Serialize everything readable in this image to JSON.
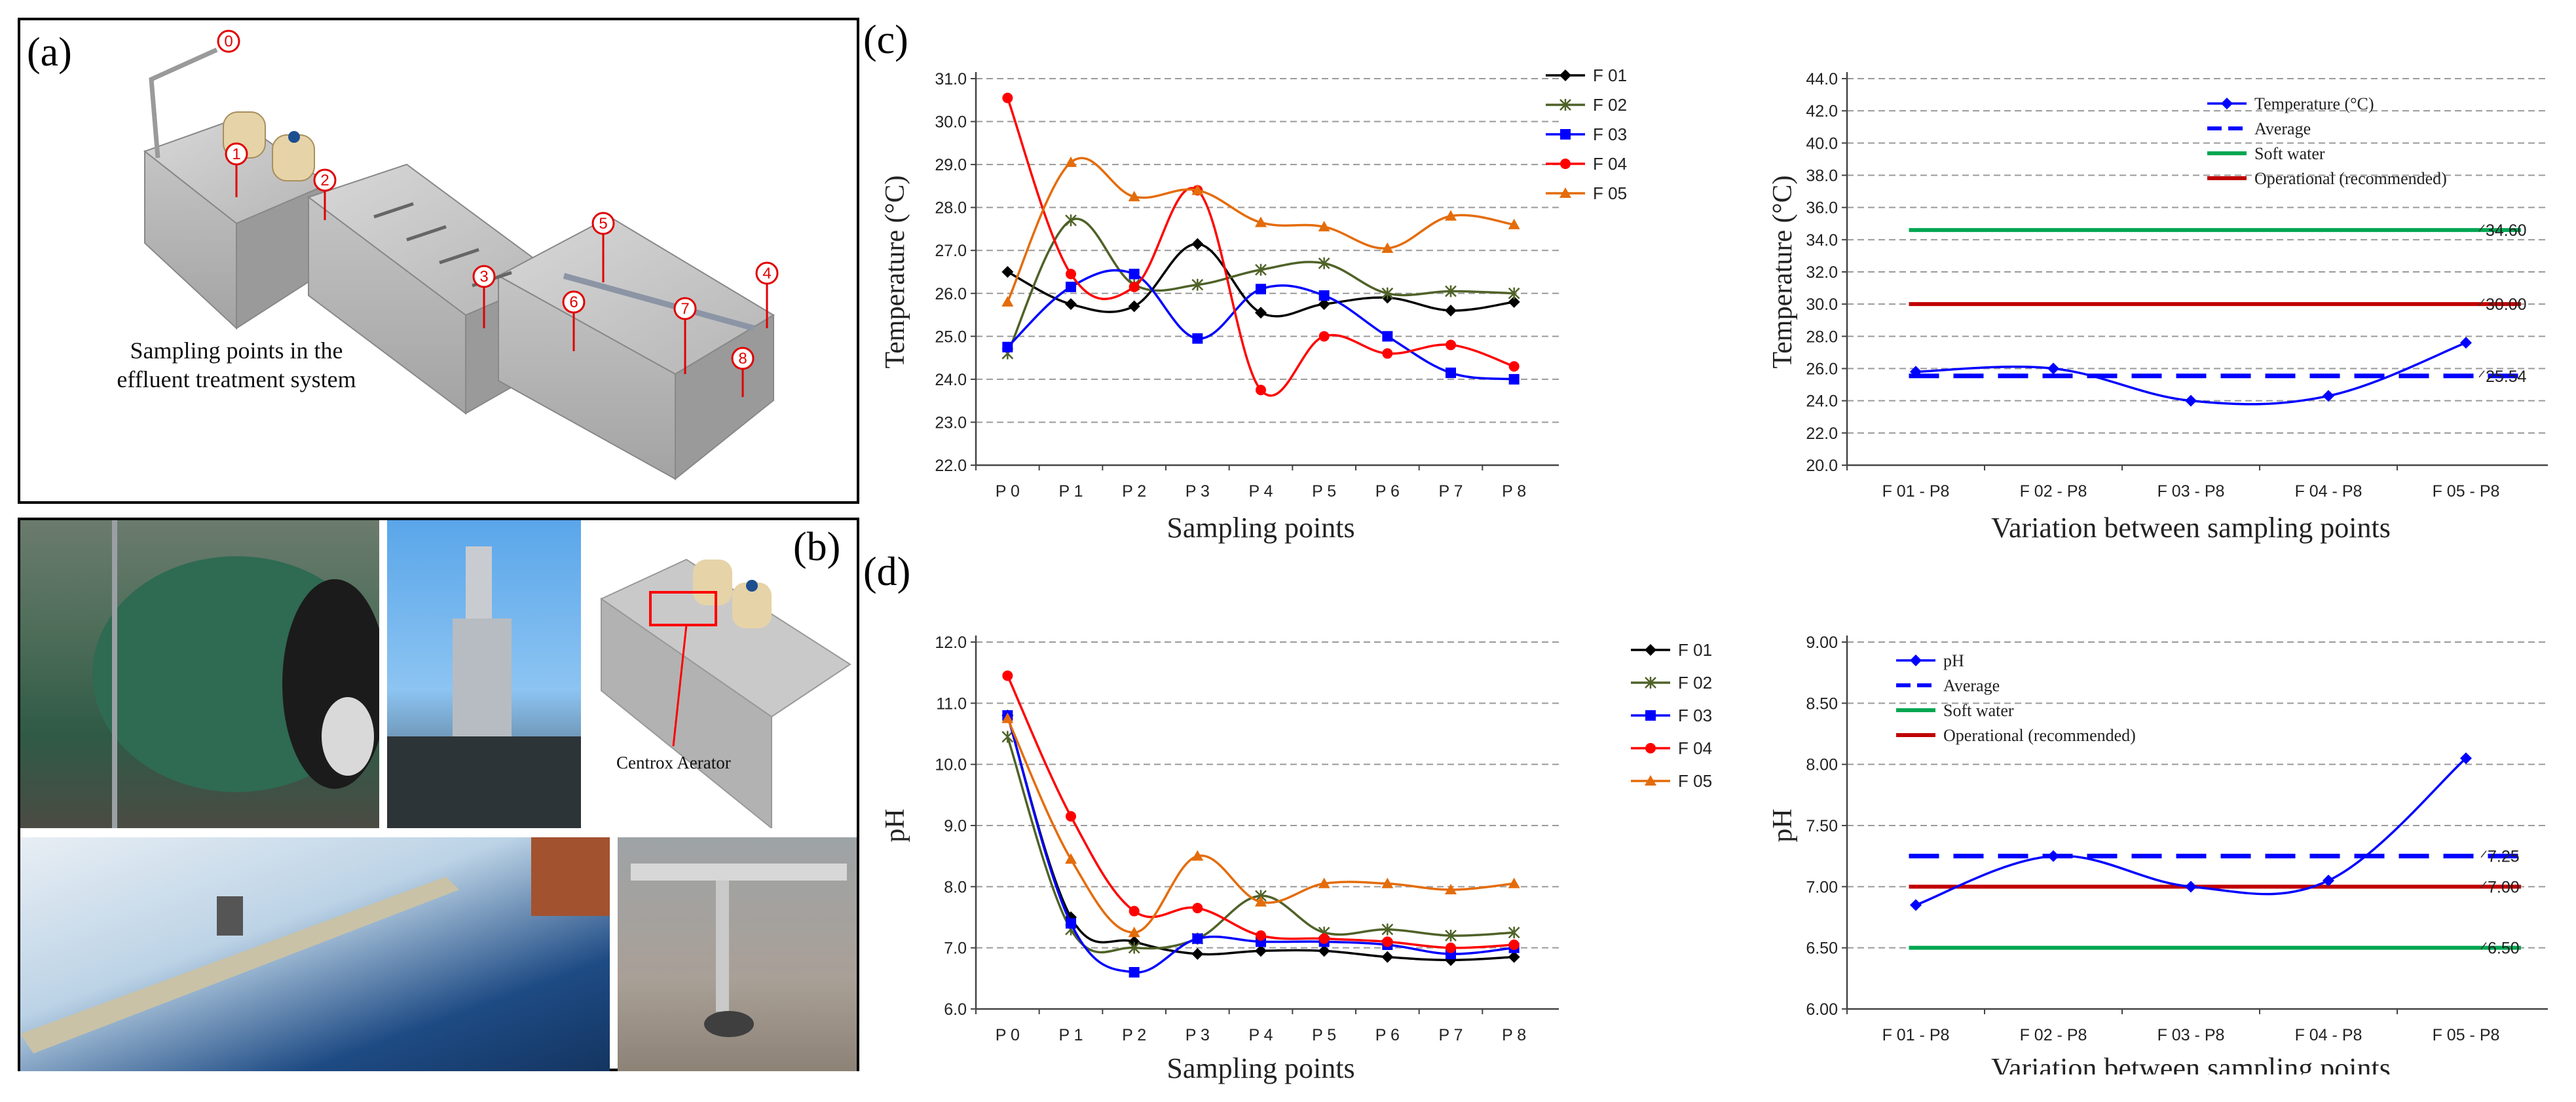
{
  "panels": {
    "a": {
      "letter": "(a)",
      "caption_line1": "Sampling points in the",
      "caption_line2": "effluent treatment system",
      "markers": [
        "0",
        "1",
        "2",
        "3",
        "4",
        "5",
        "6",
        "7",
        "8"
      ]
    },
    "b": {
      "letter": "(b)",
      "callout": "Centrox Aerator"
    },
    "c": {
      "letter": "(c)"
    },
    "d": {
      "letter": "(d)"
    }
  },
  "colors": {
    "F 01": "#000000",
    "F 02": "#4f6228",
    "F 03": "#0000ff",
    "F 04": "#ff0000",
    "F 05": "#e46c0a",
    "avg": "#0000ff",
    "soft": "#00a651",
    "oper": "#c00000",
    "marker_red": "#e00000"
  },
  "chart_data": [
    {
      "id": "temp-lines",
      "type": "line",
      "xlabel": "Sampling points",
      "ylabel": "Temperature (°C)",
      "ylim": [
        22.0,
        31.0
      ],
      "ystep": 1.0,
      "ytick_decimals": 1,
      "grid": true,
      "legend": "top-right",
      "categories": [
        "P 0",
        "P 1",
        "P 2",
        "P 3",
        "P 4",
        "P 5",
        "P 6",
        "P 7",
        "P 8"
      ],
      "series": [
        {
          "name": "F 01",
          "marker": "diamond",
          "values": [
            26.5,
            25.75,
            25.7,
            27.15,
            25.55,
            25.75,
            25.9,
            25.6,
            25.8
          ]
        },
        {
          "name": "F 02",
          "marker": "x",
          "values": [
            24.6,
            27.7,
            26.2,
            26.2,
            26.55,
            26.7,
            26.0,
            26.05,
            26.0
          ]
        },
        {
          "name": "F 03",
          "marker": "square",
          "values": [
            24.75,
            26.15,
            26.45,
            24.95,
            26.1,
            25.95,
            25.0,
            24.15,
            24.0
          ]
        },
        {
          "name": "F 04",
          "marker": "circle",
          "values": [
            30.55,
            26.45,
            26.15,
            28.4,
            23.75,
            25.0,
            24.6,
            24.8,
            24.3
          ]
        },
        {
          "name": "F 05",
          "marker": "triangle",
          "values": [
            25.8,
            29.05,
            28.25,
            28.4,
            27.65,
            27.55,
            27.05,
            27.8,
            27.6
          ]
        }
      ]
    },
    {
      "id": "temp-variation",
      "type": "line",
      "xlabel": "Variation between sampling points",
      "ylabel": "Temperature (°C)",
      "ylim": [
        20.0,
        44.0
      ],
      "ystep": 2.0,
      "ytick_decimals": 1,
      "grid": true,
      "legend": "top-right",
      "categories": [
        "F 01 - P8",
        "F 02 - P8",
        "F 03 - P8",
        "F 04 - P8",
        "F 05 - P8"
      ],
      "series": [
        {
          "name": "Temperature (°C)",
          "marker": "diamond",
          "values": [
            25.8,
            26.0,
            24.0,
            24.3,
            27.6
          ]
        }
      ],
      "reference_lines": [
        {
          "name": "Average",
          "value": 25.54,
          "label": "25.54",
          "style": "dash",
          "color_key": "avg"
        },
        {
          "name": "Soft water",
          "value": 34.6,
          "label": "34.60",
          "style": "solid",
          "color_key": "soft"
        },
        {
          "name": "Operational (recommended)",
          "value": 30.0,
          "label": "30.00",
          "style": "solid",
          "color_key": "oper"
        }
      ]
    },
    {
      "id": "ph-lines",
      "type": "line",
      "xlabel": "Sampling points",
      "ylabel": "pH",
      "ylim": [
        6.0,
        12.0
      ],
      "ystep": 1.0,
      "ytick_decimals": 1,
      "grid": true,
      "legend": "top-right",
      "categories": [
        "P 0",
        "P 1",
        "P 2",
        "P 3",
        "P 4",
        "P 5",
        "P 6",
        "P 7",
        "P 8"
      ],
      "series": [
        {
          "name": "F 01",
          "marker": "diamond",
          "values": [
            10.8,
            7.5,
            7.1,
            6.9,
            6.95,
            6.95,
            6.85,
            6.8,
            6.85
          ]
        },
        {
          "name": "F 02",
          "marker": "x",
          "values": [
            10.45,
            7.3,
            7.0,
            7.15,
            7.85,
            7.25,
            7.3,
            7.2,
            7.25
          ]
        },
        {
          "name": "F 03",
          "marker": "square",
          "values": [
            10.8,
            7.4,
            6.6,
            7.15,
            7.1,
            7.1,
            7.05,
            6.9,
            7.0
          ]
        },
        {
          "name": "F 04",
          "marker": "circle",
          "values": [
            11.45,
            9.15,
            7.6,
            7.65,
            7.2,
            7.15,
            7.1,
            7.0,
            7.05
          ]
        },
        {
          "name": "F 05",
          "marker": "triangle",
          "values": [
            10.75,
            8.45,
            7.25,
            8.5,
            7.75,
            8.05,
            8.05,
            7.95,
            8.05
          ]
        }
      ]
    },
    {
      "id": "ph-variation",
      "type": "line",
      "xlabel": "Variation between sampling points",
      "ylabel": "pH",
      "ylim": [
        6.0,
        9.0
      ],
      "ystep": 0.5,
      "ytick_decimals": 2,
      "grid": true,
      "legend": "top-left",
      "categories": [
        "F 01 - P8",
        "F 02 - P8",
        "F 03 - P8",
        "F 04 - P8",
        "F 05 - P8"
      ],
      "series": [
        {
          "name": "pH",
          "marker": "diamond",
          "values": [
            6.85,
            7.25,
            7.0,
            7.05,
            8.05
          ]
        }
      ],
      "reference_lines": [
        {
          "name": "Average",
          "value": 7.25,
          "label": "7.25",
          "style": "dash",
          "color_key": "avg"
        },
        {
          "name": "Soft water",
          "value": 6.5,
          "label": "6.50",
          "style": "solid",
          "color_key": "soft"
        },
        {
          "name": "Operational (recommended)",
          "value": 7.0,
          "label": "7.00",
          "style": "solid",
          "color_key": "oper"
        }
      ]
    }
  ]
}
